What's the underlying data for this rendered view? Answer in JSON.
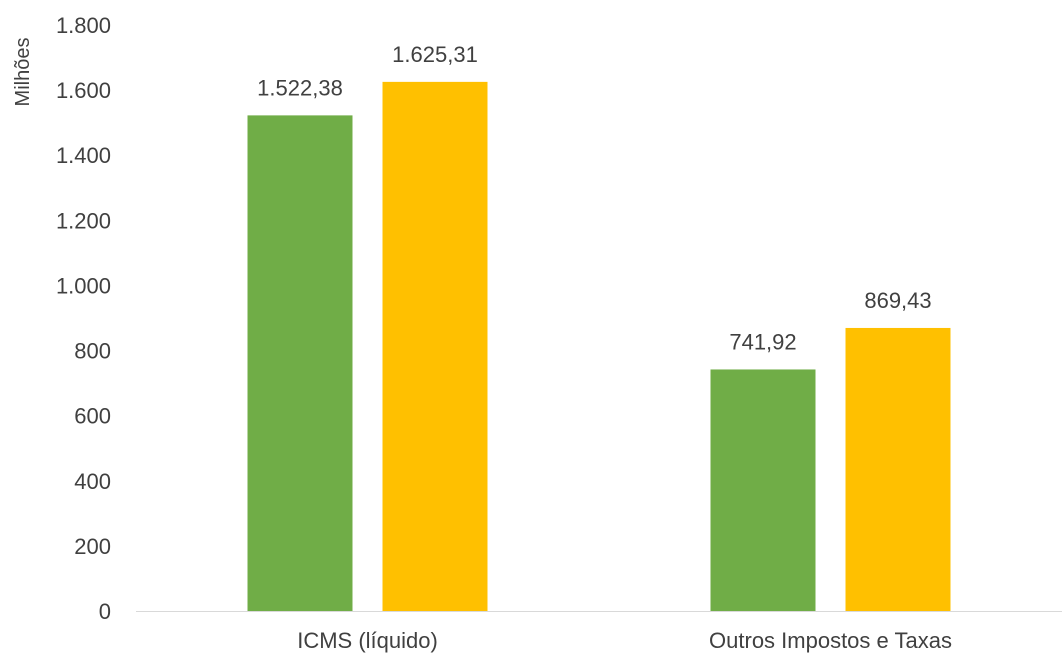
{
  "chart_data": {
    "type": "bar",
    "title": "",
    "xlabel": "",
    "ylabel": "Milhões",
    "ylim": [
      0,
      1800
    ],
    "yticks": [
      0,
      200,
      400,
      600,
      800,
      1000,
      1200,
      1400,
      1600,
      1800
    ],
    "ytick_labels": [
      "0",
      "200",
      "400",
      "600",
      "800",
      "1.000",
      "1.200",
      "1.400",
      "1.600",
      "1.800"
    ],
    "categories": [
      "ICMS (líquido)",
      "Outros Impostos e Taxas"
    ],
    "series": [
      {
        "values": [
          1522.38,
          741.92
        ],
        "labels": [
          "1.522,38",
          "741,92"
        ],
        "color": "#70ad47"
      },
      {
        "values": [
          1625.31,
          869.43
        ],
        "labels": [
          "1.625,31",
          "869,43"
        ],
        "color": "#ffc000"
      }
    ],
    "grid": false,
    "legend": "none",
    "axis_color": "#d9d9d9"
  }
}
